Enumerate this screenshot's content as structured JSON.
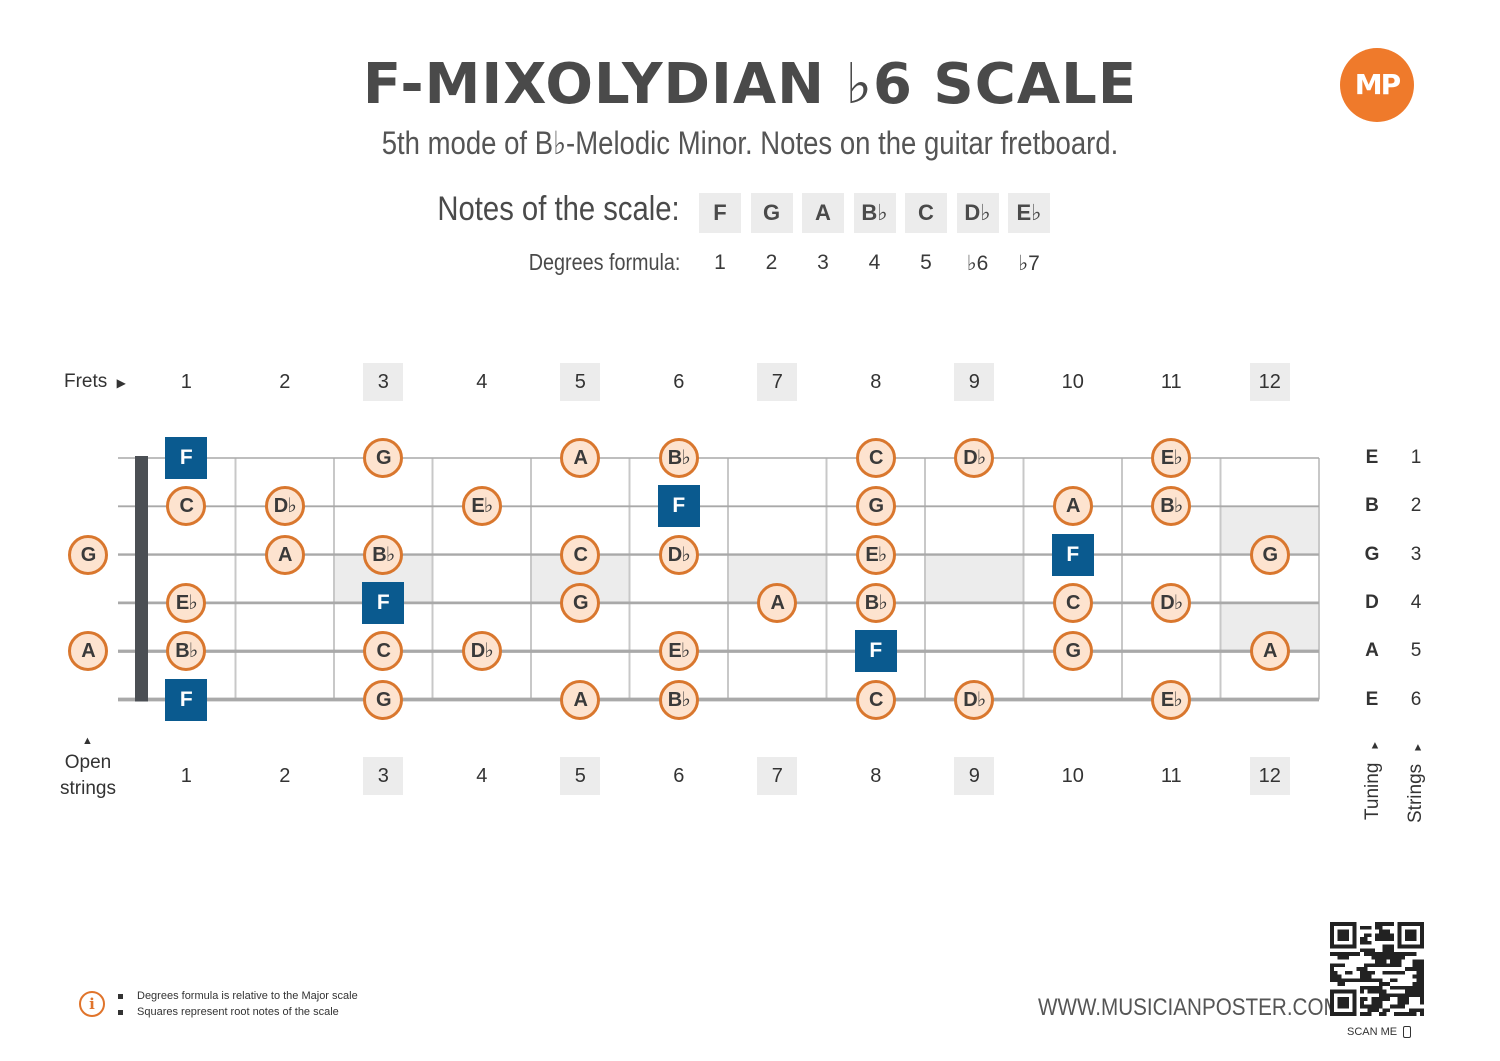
{
  "title": "F-MIXOLYDIAN ♭6 SCALE",
  "subtitle": "5th mode of B♭-Melodic Minor. Notes on the guitar fretboard.",
  "logo": "MP",
  "scale": {
    "notes_label": "Notes of the scale:",
    "degrees_label": "Degrees formula:",
    "notes": [
      "F",
      "G",
      "A",
      "B♭",
      "C",
      "D♭",
      "E♭"
    ],
    "degrees": [
      "1",
      "2",
      "3",
      "4",
      "5",
      "♭6",
      "♭7"
    ]
  },
  "frets_label": "Frets",
  "fret_numbers": [
    "1",
    "2",
    "3",
    "4",
    "5",
    "6",
    "7",
    "8",
    "9",
    "10",
    "11",
    "12"
  ],
  "open_strings_label": [
    "Open",
    "strings"
  ],
  "tuning": [
    "E",
    "B",
    "G",
    "D",
    "A",
    "E"
  ],
  "string_numbers": [
    "1",
    "2",
    "3",
    "4",
    "5",
    "6"
  ],
  "tuning_label": "Tuning",
  "strings_label": "Strings",
  "open_notes": {
    "3": "G",
    "5": "A"
  },
  "root_note": "F",
  "fretboard_notes": [
    {
      "string": 1,
      "fret": 1,
      "note": "F"
    },
    {
      "string": 1,
      "fret": 3,
      "note": "G"
    },
    {
      "string": 1,
      "fret": 5,
      "note": "A"
    },
    {
      "string": 1,
      "fret": 6,
      "note": "B♭"
    },
    {
      "string": 1,
      "fret": 8,
      "note": "C"
    },
    {
      "string": 1,
      "fret": 9,
      "note": "D♭"
    },
    {
      "string": 1,
      "fret": 11,
      "note": "E♭"
    },
    {
      "string": 2,
      "fret": 1,
      "note": "C"
    },
    {
      "string": 2,
      "fret": 2,
      "note": "D♭"
    },
    {
      "string": 2,
      "fret": 4,
      "note": "E♭"
    },
    {
      "string": 2,
      "fret": 6,
      "note": "F"
    },
    {
      "string": 2,
      "fret": 8,
      "note": "G"
    },
    {
      "string": 2,
      "fret": 10,
      "note": "A"
    },
    {
      "string": 2,
      "fret": 11,
      "note": "B♭"
    },
    {
      "string": 3,
      "fret": 2,
      "note": "A"
    },
    {
      "string": 3,
      "fret": 3,
      "note": "B♭"
    },
    {
      "string": 3,
      "fret": 5,
      "note": "C"
    },
    {
      "string": 3,
      "fret": 6,
      "note": "D♭"
    },
    {
      "string": 3,
      "fret": 8,
      "note": "E♭"
    },
    {
      "string": 3,
      "fret": 10,
      "note": "F"
    },
    {
      "string": 3,
      "fret": 12,
      "note": "G"
    },
    {
      "string": 4,
      "fret": 1,
      "note": "E♭"
    },
    {
      "string": 4,
      "fret": 3,
      "note": "F"
    },
    {
      "string": 4,
      "fret": 5,
      "note": "G"
    },
    {
      "string": 4,
      "fret": 7,
      "note": "A"
    },
    {
      "string": 4,
      "fret": 8,
      "note": "B♭"
    },
    {
      "string": 4,
      "fret": 10,
      "note": "C"
    },
    {
      "string": 4,
      "fret": 11,
      "note": "D♭"
    },
    {
      "string": 5,
      "fret": 1,
      "note": "B♭"
    },
    {
      "string": 5,
      "fret": 3,
      "note": "C"
    },
    {
      "string": 5,
      "fret": 4,
      "note": "D♭"
    },
    {
      "string": 5,
      "fret": 6,
      "note": "E♭"
    },
    {
      "string": 5,
      "fret": 8,
      "note": "F"
    },
    {
      "string": 5,
      "fret": 10,
      "note": "G"
    },
    {
      "string": 5,
      "fret": 12,
      "note": "A"
    },
    {
      "string": 6,
      "fret": 1,
      "note": "F"
    },
    {
      "string": 6,
      "fret": 3,
      "note": "G"
    },
    {
      "string": 6,
      "fret": 5,
      "note": "A"
    },
    {
      "string": 6,
      "fret": 6,
      "note": "B♭"
    },
    {
      "string": 6,
      "fret": 8,
      "note": "C"
    },
    {
      "string": 6,
      "fret": 9,
      "note": "D♭"
    },
    {
      "string": 6,
      "fret": 11,
      "note": "E♭"
    }
  ],
  "info": {
    "lines": [
      "Degrees formula is relative to the Major scale",
      "Squares represent root notes of the scale"
    ]
  },
  "footer_url": "WWW.MUSICIANPOSTER.COM",
  "scan_me": "SCAN ME",
  "colors": {
    "accent_orange": "#e0742b",
    "note_fill": "#fde3cf",
    "root_blue": "#0a5a8f",
    "marker_gray": "#ececec"
  }
}
